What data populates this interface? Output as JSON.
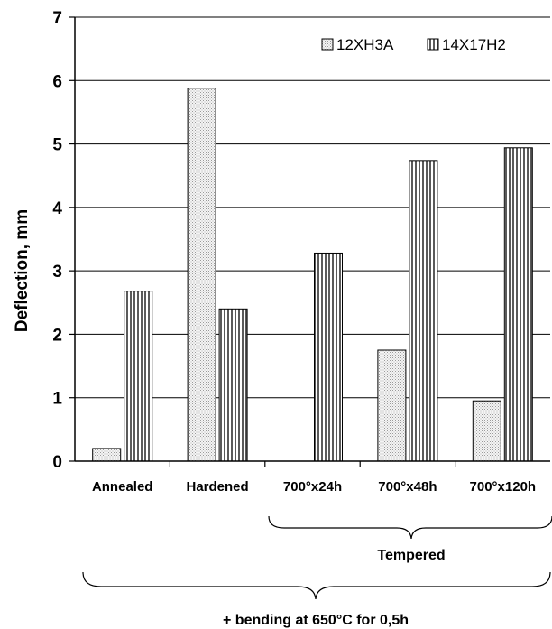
{
  "chart_data": {
    "type": "bar",
    "categories": [
      "Annealed",
      "Hardened",
      "700°x24h",
      "700°x48h",
      "700°x120h"
    ],
    "series": [
      {
        "name": "12XH3A",
        "values": [
          0.2,
          5.88,
          0,
          1.75,
          0.95
        ],
        "color": "#e8e8e8",
        "pattern": "dots"
      },
      {
        "name": "14X17H2",
        "values": [
          2.68,
          2.4,
          3.28,
          4.74,
          4.94
        ],
        "color": "#808080",
        "pattern": "vertical-stripes"
      }
    ],
    "title": "",
    "xlabel": "",
    "ylabel": "Deflection, mm",
    "ylim": [
      0,
      7
    ],
    "yticks": [
      "0",
      "1",
      "2",
      "3",
      "4",
      "5",
      "6",
      "7"
    ],
    "grid": true,
    "legend_position": "top-right",
    "annotations": {
      "tempered_label": "Tempered",
      "bending_label": "+ bending at 650°C for 0,5h"
    }
  }
}
